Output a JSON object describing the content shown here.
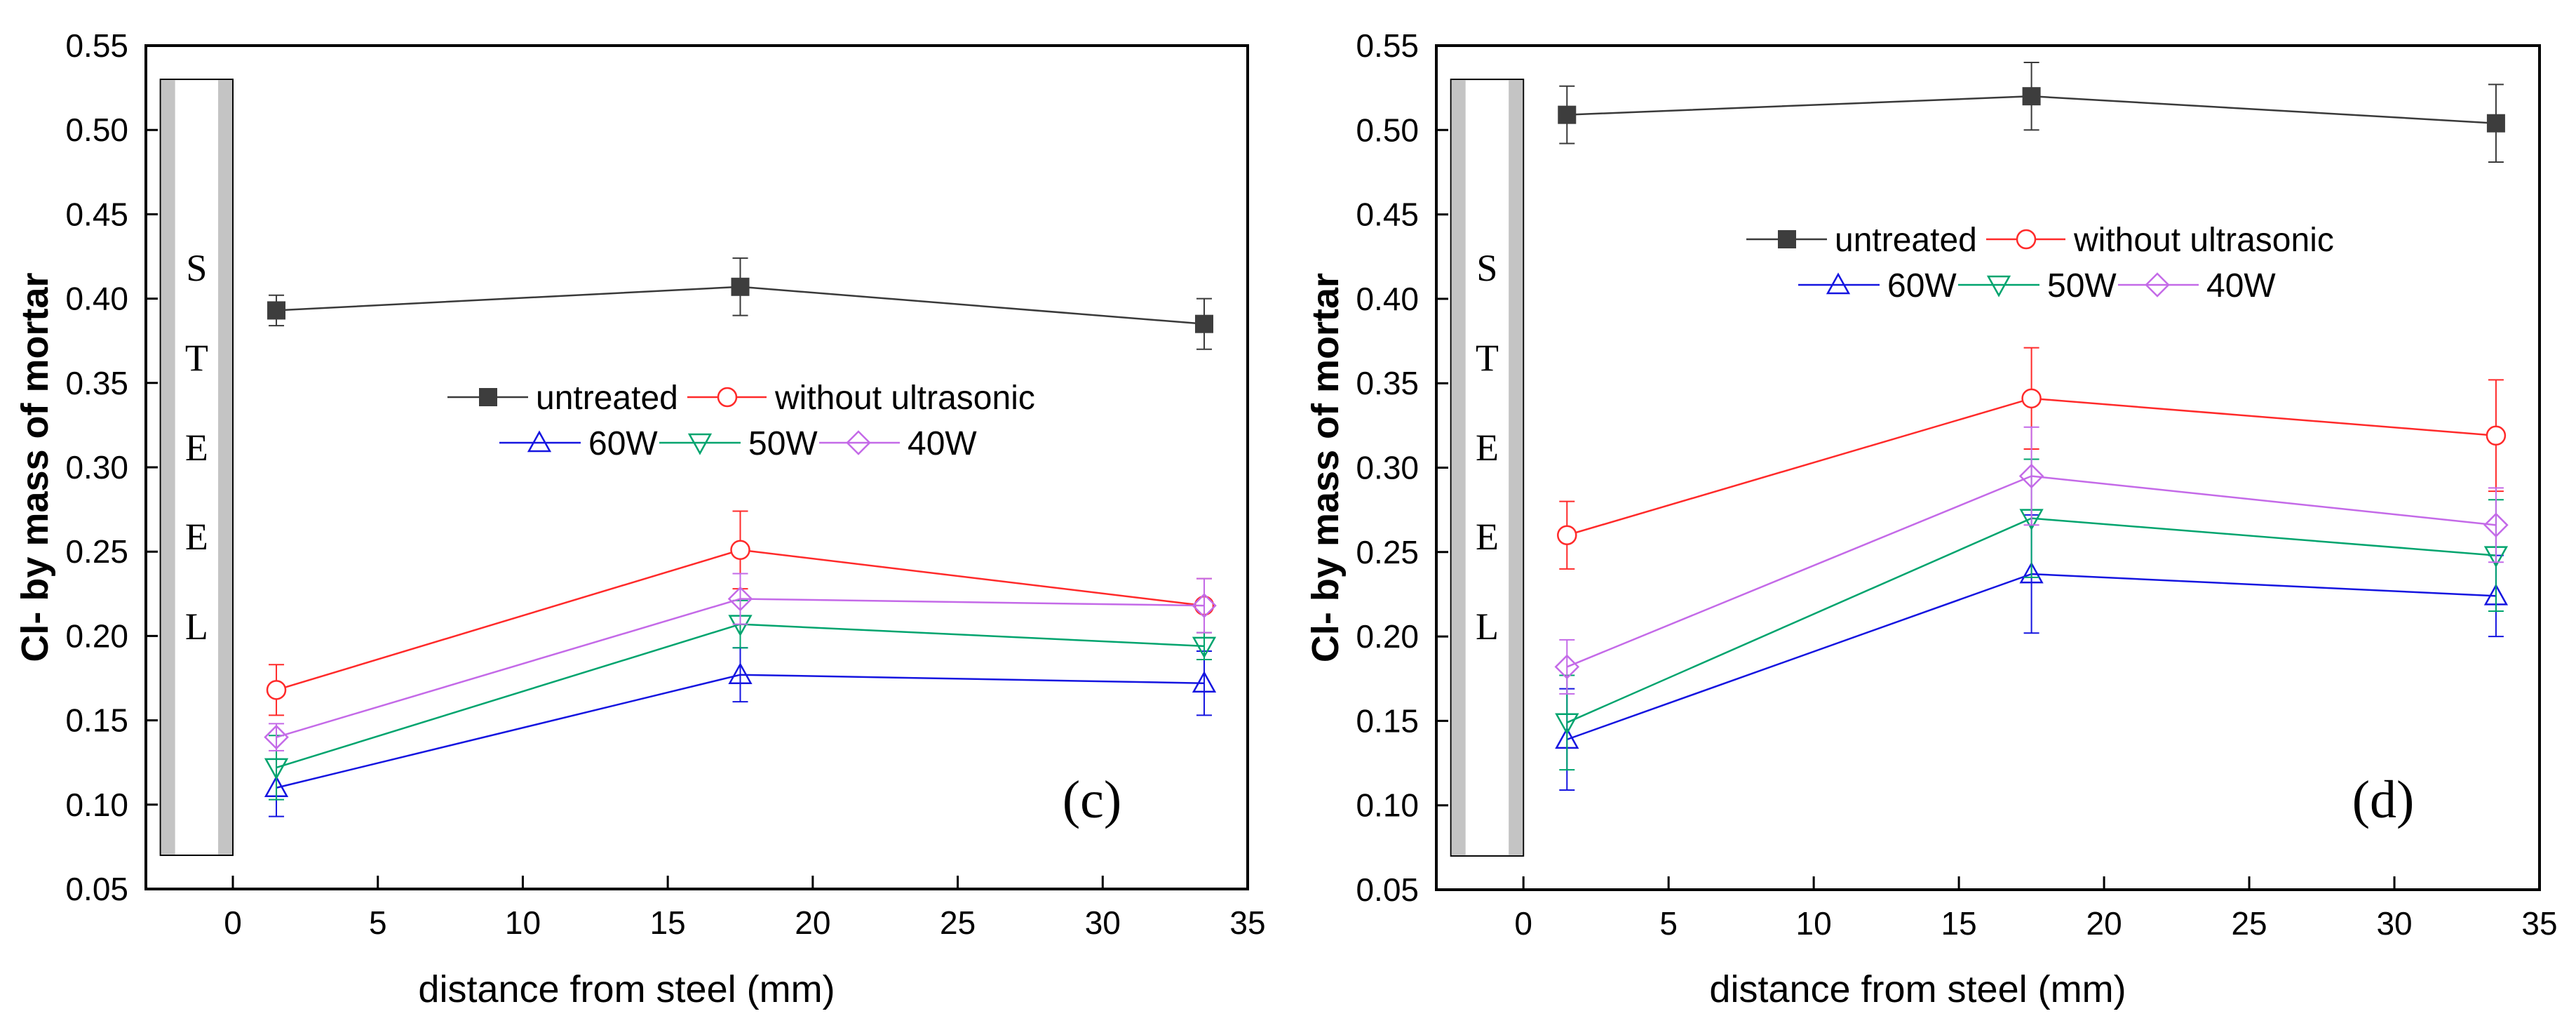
{
  "chart_data": [
    {
      "type": "line",
      "panel_label": "(c)",
      "xlabel": "distance from steel (mm)",
      "ylabel": "Cl- by mass of mortar",
      "xlim": [
        -3,
        35
      ],
      "ylim": [
        0.05,
        0.55
      ],
      "xticks": [
        "0",
        "5",
        "10",
        "15",
        "20",
        "25",
        "30",
        "35"
      ],
      "yticks": [
        "0.05",
        "0.10",
        "0.15",
        "0.20",
        "0.25",
        "0.30",
        "0.35",
        "0.40",
        "0.45",
        "0.50",
        "0.55"
      ],
      "grid": false,
      "steel_label": [
        "S",
        "T",
        "E",
        "E",
        "L"
      ],
      "x": [
        1.5,
        17.5,
        33.5
      ],
      "series": [
        {
          "name": "untreated",
          "marker": "square",
          "color": "#3a3a3a",
          "values": [
            0.393,
            0.407,
            0.385
          ],
          "errors": [
            0.009,
            0.017,
            0.015
          ]
        },
        {
          "name": "without ultrasonic",
          "marker": "circle",
          "color": "#ff2a2a",
          "values": [
            0.168,
            0.251,
            0.218
          ],
          "errors": [
            0.015,
            0.023,
            0.016
          ]
        },
        {
          "name": "60W",
          "marker": "triangle-up",
          "color": "#1515e0",
          "values": [
            0.11,
            0.177,
            0.172
          ],
          "errors": [
            0.017,
            0.016,
            0.019
          ]
        },
        {
          "name": "50W",
          "marker": "triangle-down",
          "color": "#00a46e",
          "values": [
            0.122,
            0.207,
            0.194
          ],
          "errors": [
            0.019,
            0.014,
            0.008
          ]
        },
        {
          "name": "40W",
          "marker": "diamond",
          "color": "#c46ae8",
          "values": [
            0.14,
            0.222,
            0.218
          ],
          "errors": [
            0.008,
            0.015,
            0.016
          ]
        }
      ]
    },
    {
      "type": "line",
      "panel_label": "(d)",
      "xlabel": "distance from steel (mm)",
      "ylabel": "Cl- by mass of mortar",
      "xlim": [
        -3,
        35
      ],
      "ylim": [
        0.05,
        0.55
      ],
      "xticks": [
        "0",
        "5",
        "10",
        "15",
        "20",
        "25",
        "30",
        "35"
      ],
      "yticks": [
        "0.05",
        "0.10",
        "0.15",
        "0.20",
        "0.25",
        "0.30",
        "0.35",
        "0.40",
        "0.45",
        "0.50",
        "0.55"
      ],
      "grid": false,
      "steel_label": [
        "S",
        "T",
        "E",
        "E",
        "L"
      ],
      "x": [
        1.5,
        17.5,
        33.5
      ],
      "series": [
        {
          "name": "untreated",
          "marker": "square",
          "color": "#3a3a3a",
          "values": [
            0.509,
            0.52,
            0.504
          ],
          "errors": [
            0.017,
            0.02,
            0.023
          ]
        },
        {
          "name": "without ultrasonic",
          "marker": "circle",
          "color": "#ff2a2a",
          "values": [
            0.26,
            0.341,
            0.319
          ],
          "errors": [
            0.02,
            0.03,
            0.033
          ]
        },
        {
          "name": "60W",
          "marker": "triangle-up",
          "color": "#1515e0",
          "values": [
            0.139,
            0.237,
            0.224
          ],
          "errors": [
            0.03,
            0.035,
            0.024
          ]
        },
        {
          "name": "50W",
          "marker": "triangle-down",
          "color": "#00a46e",
          "values": [
            0.149,
            0.27,
            0.248
          ],
          "errors": [
            0.028,
            0.035,
            0.033
          ]
        },
        {
          "name": "40W",
          "marker": "diamond",
          "color": "#c46ae8",
          "values": [
            0.182,
            0.295,
            0.266
          ],
          "errors": [
            0.016,
            0.029,
            0.022
          ]
        }
      ]
    }
  ]
}
